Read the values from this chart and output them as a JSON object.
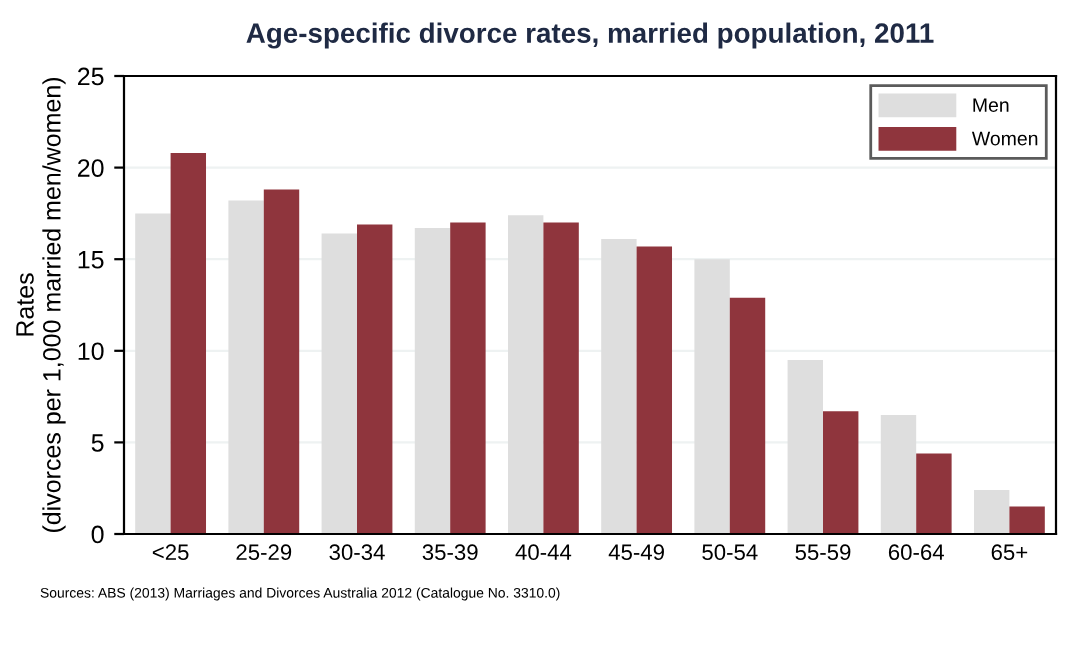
{
  "chart_data": {
    "type": "bar",
    "title": "Age-specific divorce rates, married population, 2011",
    "ylabel": "Rates\n(divorces per 1,000 married men/women)",
    "categories": [
      "<25",
      "25-29",
      "30-34",
      "35-39",
      "40-44",
      "45-49",
      "50-54",
      "55-59",
      "60-64",
      "65+"
    ],
    "series": [
      {
        "name": "Men",
        "color": "#dedede",
        "values": [
          17.5,
          18.2,
          16.4,
          16.7,
          17.4,
          16.1,
          15.0,
          9.5,
          6.5,
          2.4
        ]
      },
      {
        "name": "Women",
        "color": "#8f353d",
        "values": [
          20.8,
          18.8,
          16.9,
          17.0,
          17.0,
          15.7,
          12.9,
          6.7,
          4.4,
          1.5
        ]
      }
    ],
    "ylim": [
      0,
      25
    ],
    "yticks": [
      0,
      5,
      10,
      15,
      20,
      25
    ],
    "grid": "y",
    "legend": "top right",
    "annotations": [
      "Sources: ABS (2013) Marriages and Divorces Australia 2012 (Catalogue No. 3310.0)"
    ]
  }
}
